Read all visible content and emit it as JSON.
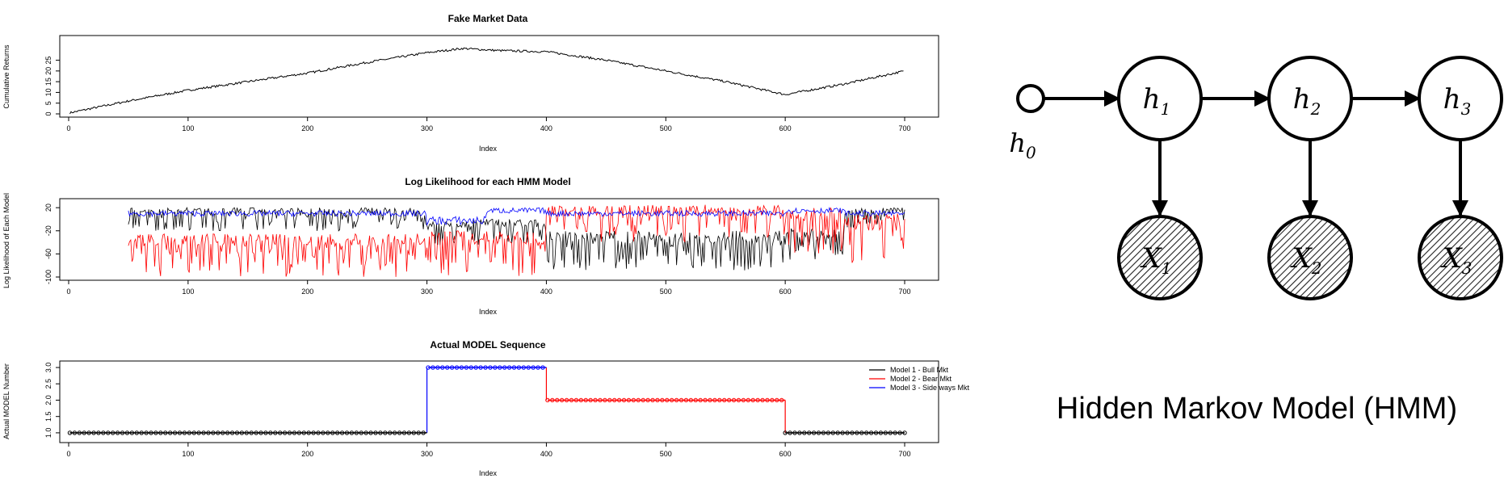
{
  "chart_data": [
    {
      "type": "line",
      "title": "Fake Market Data",
      "xlabel": "Index",
      "ylabel": "Cumulative Returns",
      "xlim": [
        0,
        700
      ],
      "ylim": [
        0,
        35
      ],
      "xticks": [
        0,
        100,
        200,
        300,
        400,
        500,
        600,
        700
      ],
      "yticks": [
        0,
        5,
        10,
        15,
        20,
        25
      ],
      "series": [
        {
          "color": "#000000",
          "points": [
            [
              1,
              0.5
            ],
            [
              50,
              6
            ],
            [
              100,
              11
            ],
            [
              150,
              15
            ],
            [
              200,
              19
            ],
            [
              250,
              24
            ],
            [
              300,
              28.5
            ],
            [
              330,
              30.5
            ],
            [
              360,
              29.5
            ],
            [
              400,
              29
            ],
            [
              450,
              25
            ],
            [
              500,
              20
            ],
            [
              550,
              15
            ],
            [
              600,
              9
            ],
            [
              650,
              14
            ],
            [
              700,
              20
            ]
          ]
        }
      ]
    },
    {
      "type": "line",
      "title": "Log Likelihood for each HMM Model",
      "xlabel": "Index",
      "ylabel": "Log Likelihood of Each Model",
      "xlim": [
        0,
        700
      ],
      "ylim": [
        -100,
        30
      ],
      "xticks": [
        0,
        100,
        200,
        300,
        400,
        500,
        600,
        700
      ],
      "yticks": [
        -100,
        -60,
        -20,
        20
      ],
      "x_start": 50,
      "series": [
        {
          "color": "#000000",
          "segments": [
            [
              50,
              20,
              -20
            ],
            [
              300,
              0,
              -45
            ],
            [
              400,
              -20,
              -90
            ],
            [
              600,
              -15,
              -70
            ],
            [
              650,
              20,
              -20
            ],
            [
              700,
              20,
              -20
            ]
          ]
        },
        {
          "color": "#ff0000",
          "segments": [
            [
              50,
              -25,
              -100
            ],
            [
              300,
              -20,
              -100
            ],
            [
              400,
              25,
              -40
            ],
            [
              600,
              20,
              -60
            ],
            [
              650,
              10,
              -90
            ],
            [
              700,
              10,
              -90
            ]
          ]
        },
        {
          "color": "#0000ff",
          "segments": [
            [
              50,
              15,
              5
            ],
            [
              300,
              5,
              -10
            ],
            [
              350,
              20,
              10
            ],
            [
              400,
              15,
              5
            ],
            [
              600,
              20,
              10
            ],
            [
              650,
              15,
              5
            ],
            [
              700,
              15,
              5
            ]
          ]
        }
      ]
    },
    {
      "type": "line",
      "title": "Actual MODEL Sequence",
      "xlabel": "Index",
      "ylabel": "Actual MODEL Number",
      "xlim": [
        0,
        700
      ],
      "ylim": [
        0.8,
        3.1
      ],
      "xticks": [
        0,
        100,
        200,
        300,
        400,
        500,
        600,
        700
      ],
      "yticks": [
        1.0,
        1.5,
        2.0,
        2.5,
        3.0
      ],
      "yticklabels": [
        "1.0",
        "1.5",
        "2.0",
        "2.5",
        "3.0"
      ],
      "legend": {
        "position": "top-right",
        "entries": [
          {
            "label": "Model 1 - Bull Mkt",
            "color": "#000000"
          },
          {
            "label": "Model 2 - Bear Mkt",
            "color": "#ff0000"
          },
          {
            "label": "Model 3 - Side ways Mkt",
            "color": "#0000ff"
          }
        ]
      },
      "series": [
        {
          "name": "Model 1 - Bull Mkt",
          "color": "#000000",
          "ranges": [
            [
              1,
              300,
              1
            ],
            [
              600,
              700,
              1
            ]
          ]
        },
        {
          "name": "Model 3 - Side ways Mkt",
          "color": "#0000ff",
          "ranges": [
            [
              301,
              400,
              3
            ]
          ]
        },
        {
          "name": "Model 2 - Bear Mkt",
          "color": "#ff0000",
          "ranges": [
            [
              401,
              600,
              2
            ]
          ]
        }
      ]
    }
  ],
  "diagram": {
    "caption": "Hidden Markov Model (HMM)",
    "h0": "h",
    "h0_sub": "0",
    "hidden": [
      {
        "label": "h",
        "sub": "1"
      },
      {
        "label": "h",
        "sub": "2"
      },
      {
        "label": "h",
        "sub": "3"
      }
    ],
    "observed": [
      {
        "label": "X",
        "sub": "1"
      },
      {
        "label": "X",
        "sub": "2"
      },
      {
        "label": "X",
        "sub": "3"
      }
    ]
  }
}
